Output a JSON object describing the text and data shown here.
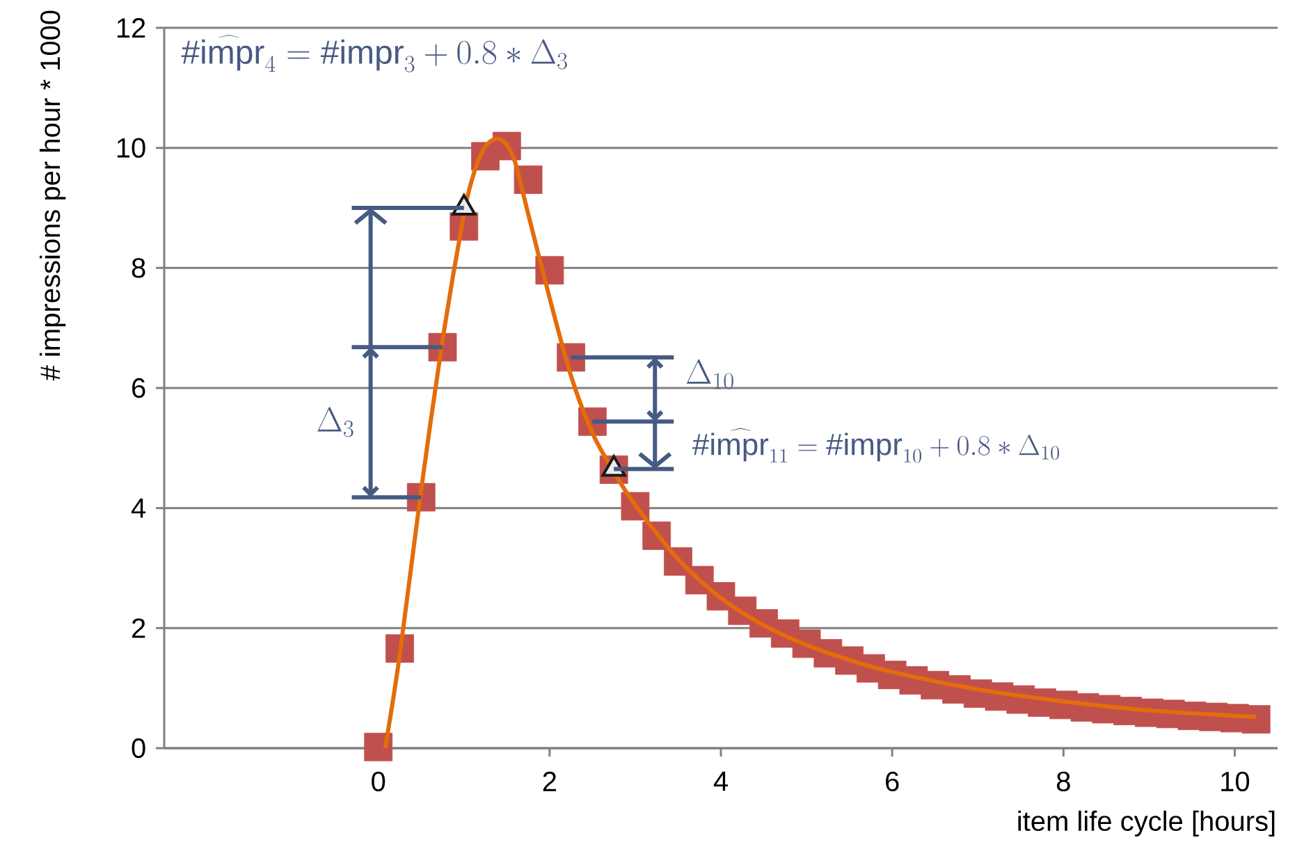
{
  "chart_data": {
    "type": "scatter",
    "xlabel": "item life cycle [hours]",
    "ylabel": "# impressions per hour * 1000",
    "xlim": [
      -2.5,
      10.5
    ],
    "ylim": [
      0,
      12
    ],
    "xticks": [
      0,
      2,
      4,
      6,
      8,
      10
    ],
    "yticks": [
      0,
      2,
      4,
      6,
      8,
      10,
      12
    ],
    "grid": "y",
    "legend": false,
    "annotations": [
      "\\widehat{\\mathsf{\\#impr}_{4}} = \\mathsf{\\#impr}_{3} + 0.8 * \\Delta_{3}",
      "\\Delta_{3}",
      "\\widehat{\\mathsf{\\#impr}_{11}} = \\mathsf{\\#impr}_{10} + 0.8 * \\Delta_{10}",
      {
        "text": "\\Delta_{10}",
        "x": 2.25,
        "y": 6.51
      }
    ],
    "series": [
      {
        "type": "scatter",
        "marker": "square",
        "color": "#c0504d",
        "x": [
          0,
          0.25,
          0.5,
          0.75,
          1.0,
          1.25,
          1.5,
          1.75,
          2.0,
          2.25,
          2.5,
          2.75,
          3.0,
          3.25,
          3.5,
          3.75,
          4.0,
          4.25,
          4.5,
          4.75,
          5.0,
          5.25,
          5.5,
          5.75,
          6.0,
          6.25,
          6.5,
          6.75,
          7.0,
          7.25,
          7.5,
          7.75,
          8.0,
          8.25,
          8.5,
          8.75,
          9.0,
          9.25,
          9.5,
          9.75,
          10.0,
          10.25
        ],
        "values": [
          0.02,
          1.66,
          4.18,
          6.68,
          8.69,
          9.86,
          10.03,
          9.47,
          7.96,
          6.51,
          5.44,
          4.64,
          4.03,
          3.54,
          3.11,
          2.8,
          2.53,
          2.29,
          2.08,
          1.91,
          1.74,
          1.58,
          1.46,
          1.33,
          1.22,
          1.13,
          1.05,
          0.98,
          0.91,
          0.86,
          0.81,
          0.76,
          0.72,
          0.68,
          0.65,
          0.62,
          0.59,
          0.57,
          0.54,
          0.52,
          0.5,
          0.48
        ]
      },
      {
        "type": "line",
        "marker": "none",
        "color": "#e46c0a",
        "x": [
          0.08,
          0.25,
          0.5,
          0.75,
          1.0,
          1.1,
          1.2,
          1.3,
          1.4,
          1.5,
          1.6,
          1.75,
          2.0,
          2.25,
          2.5,
          2.75,
          3.0,
          3.5,
          4.0,
          4.5,
          5.0,
          5.5,
          6.0,
          7.0,
          8.0,
          9.0,
          10.25
        ],
        "values": [
          0,
          1.55,
          4.3,
          6.8,
          8.9,
          9.5,
          9.9,
          10.1,
          10.15,
          10.05,
          9.75,
          8.9,
          7.5,
          6.2,
          5.25,
          4.6,
          4.05,
          3.15,
          2.5,
          2.05,
          1.72,
          1.47,
          1.27,
          0.98,
          0.78,
          0.63,
          0.52
        ]
      },
      {
        "type": "scatter",
        "marker": "triangle",
        "color": "#1a1a1a",
        "x": [
          1.0,
          2.75
        ],
        "values": [
          9.0,
          4.65
        ]
      }
    ]
  }
}
